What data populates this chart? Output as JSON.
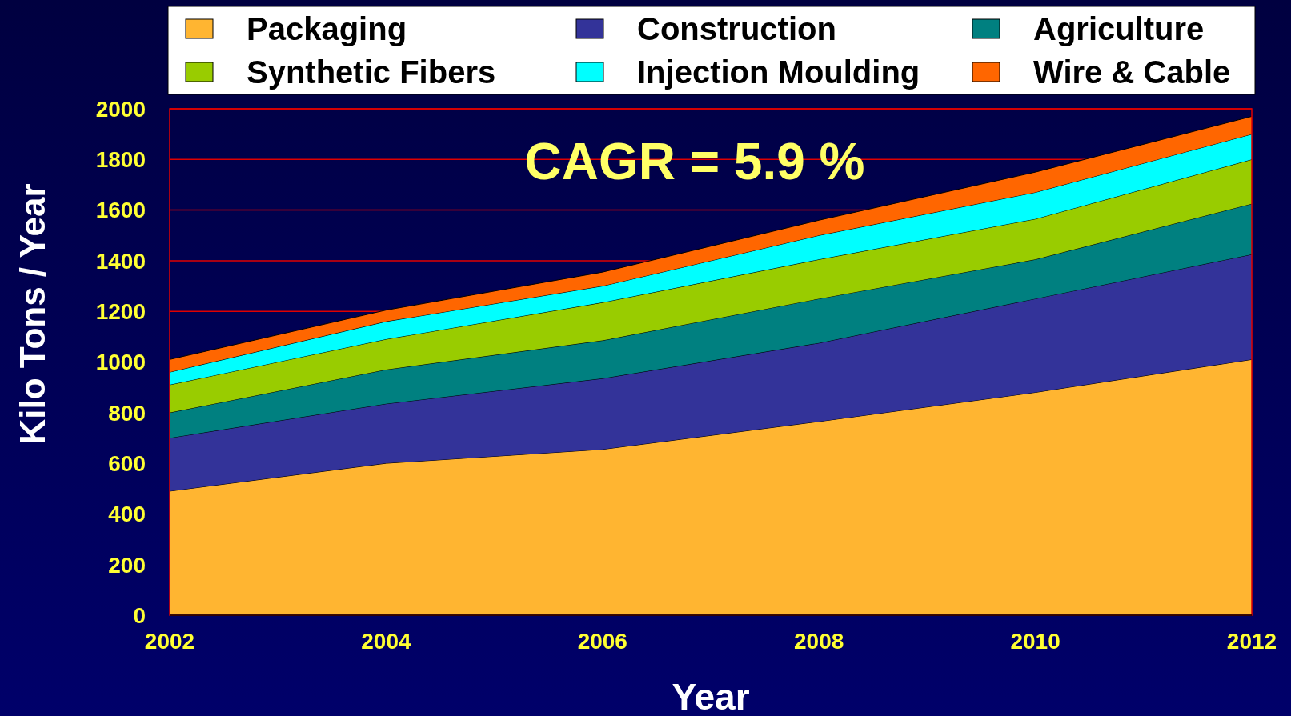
{
  "chart_data": {
    "type": "area",
    "stacked": true,
    "xlabel": "Year",
    "ylabel": "Kilo Tons / Year",
    "annotations": [
      "CAGR = 5.9 %"
    ],
    "x": [
      2002,
      2004,
      2006,
      2008,
      2010,
      2012
    ],
    "series": [
      {
        "name": "Packaging",
        "color": "#ffb531",
        "values": [
          490,
          600,
          655,
          765,
          880,
          1010
        ]
      },
      {
        "name": "Construction",
        "color": "#333399",
        "values": [
          210,
          235,
          280,
          310,
          370,
          415
        ]
      },
      {
        "name": "Agriculture",
        "color": "#008080",
        "values": [
          100,
          135,
          150,
          175,
          155,
          200
        ]
      },
      {
        "name": "Synthetic Fibers",
        "color": "#99cc00",
        "values": [
          110,
          120,
          150,
          155,
          160,
          175
        ]
      },
      {
        "name": "Injection Moulding",
        "color": "#00ffff",
        "values": [
          50,
          70,
          65,
          95,
          105,
          100
        ]
      },
      {
        "name": "Wire & Cable",
        "color": "#ff6600",
        "values": [
          50,
          45,
          55,
          60,
          80,
          70
        ]
      }
    ],
    "xlim": [
      2002,
      2012
    ],
    "xticks": [
      2002,
      2004,
      2006,
      2008,
      2010,
      2012
    ],
    "ylim": [
      0,
      2000
    ],
    "yticks": [
      0,
      200,
      400,
      600,
      800,
      1000,
      1200,
      1400,
      1600,
      1800,
      2000
    ],
    "grid": "y",
    "legend": "top"
  }
}
